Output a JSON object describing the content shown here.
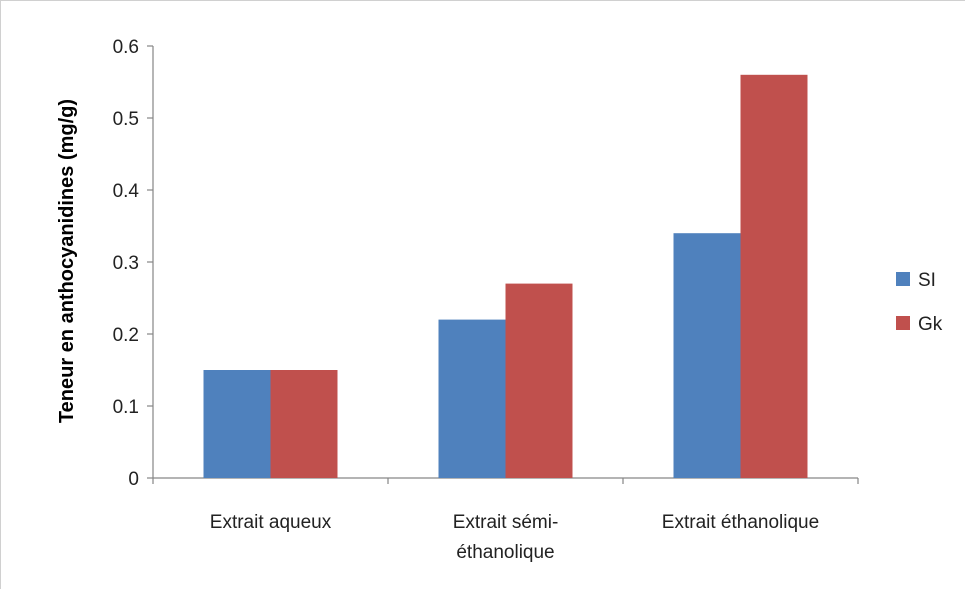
{
  "chart_data": {
    "type": "bar",
    "categories": [
      [
        "Extrait aqueux"
      ],
      [
        "Extrait sémi-",
        "éthanolique"
      ],
      [
        "Extrait éthanolique"
      ]
    ],
    "series": [
      {
        "name": "SI",
        "values": [
          0.15,
          0.22,
          0.34
        ],
        "color": "#4f81bd"
      },
      {
        "name": "Gk",
        "values": [
          0.15,
          0.27,
          0.56
        ],
        "color": "#c0504d"
      }
    ],
    "ylabel": "Teneur en anthocyanidines  (mg/g)",
    "xlabel": "",
    "title": "",
    "ylim": [
      0,
      0.6
    ],
    "yticks": [
      "0",
      "0.1",
      "0.2",
      "0.3",
      "0.4",
      "0.5",
      "0.6"
    ],
    "grid": false,
    "legend_position": "right"
  }
}
